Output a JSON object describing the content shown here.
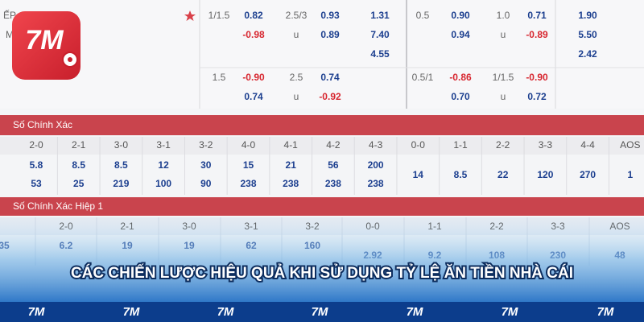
{
  "logo_text": "7M",
  "odds_table": {
    "rows": [
      [
        "ẾP",
        "1/1.5",
        "0.82",
        "2.5/3",
        "0.93",
        "1.31",
        "0.5",
        "0.90",
        "1.0",
        "0.71",
        "1.90"
      ],
      [
        "M",
        null,
        "-0.98",
        "u",
        "0.89",
        "7.40",
        null,
        "0.94",
        "u",
        "-0.89",
        "5.50"
      ],
      [
        null,
        null,
        null,
        null,
        null,
        "4.55",
        null,
        null,
        null,
        null,
        "2.42"
      ],
      [
        null,
        "1.5",
        "-0.90",
        "2.5",
        "0.74",
        null,
        "0.5/1",
        "-0.86",
        "1/1.5",
        "-0.90",
        null
      ],
      [
        null,
        null,
        "0.74",
        "u",
        "-0.92",
        null,
        null,
        "0.70",
        "u",
        "0.72",
        null
      ]
    ]
  },
  "correct_score": {
    "title": "Số Chính Xác",
    "columns": [
      "2-0",
      "2-1",
      "3-0",
      "3-1",
      "3-2",
      "4-0",
      "4-1",
      "4-2",
      "4-3",
      "0-0",
      "1-1",
      "2-2",
      "3-3",
      "4-4",
      "AOS"
    ],
    "rows": [
      [
        "5.8",
        "8.5",
        "8.5",
        "12",
        "30",
        "15",
        "21",
        "56",
        "200",
        "14",
        "8.5",
        "22",
        "120",
        "270",
        "1"
      ],
      [
        "53",
        "25",
        "219",
        "100",
        "90",
        "238",
        "238",
        "238",
        "238",
        null,
        null,
        null,
        null,
        null,
        null
      ]
    ]
  },
  "correct_score_half": {
    "title": "Số Chính Xác Hiệp 1",
    "columns": [
      null,
      "2-0",
      "2-1",
      "3-0",
      "3-1",
      "3-2",
      "0-0",
      "1-1",
      "2-2",
      "3-3",
      "AOS"
    ],
    "rows": [
      [
        "35",
        "6.2",
        "19",
        "19",
        "62",
        "160",
        null,
        null,
        null,
        null,
        null
      ],
      [
        null,
        null,
        null,
        null,
        null,
        null,
        "2.92",
        "9.2",
        "108",
        "230",
        "48"
      ]
    ]
  },
  "banner": {
    "title": "CÁC CHIẾN LƯỢC HIỆU QUẢ KHI SỬ DỤNG TỶ LỆ ĂN TIỀN NHÀ CÁI"
  }
}
